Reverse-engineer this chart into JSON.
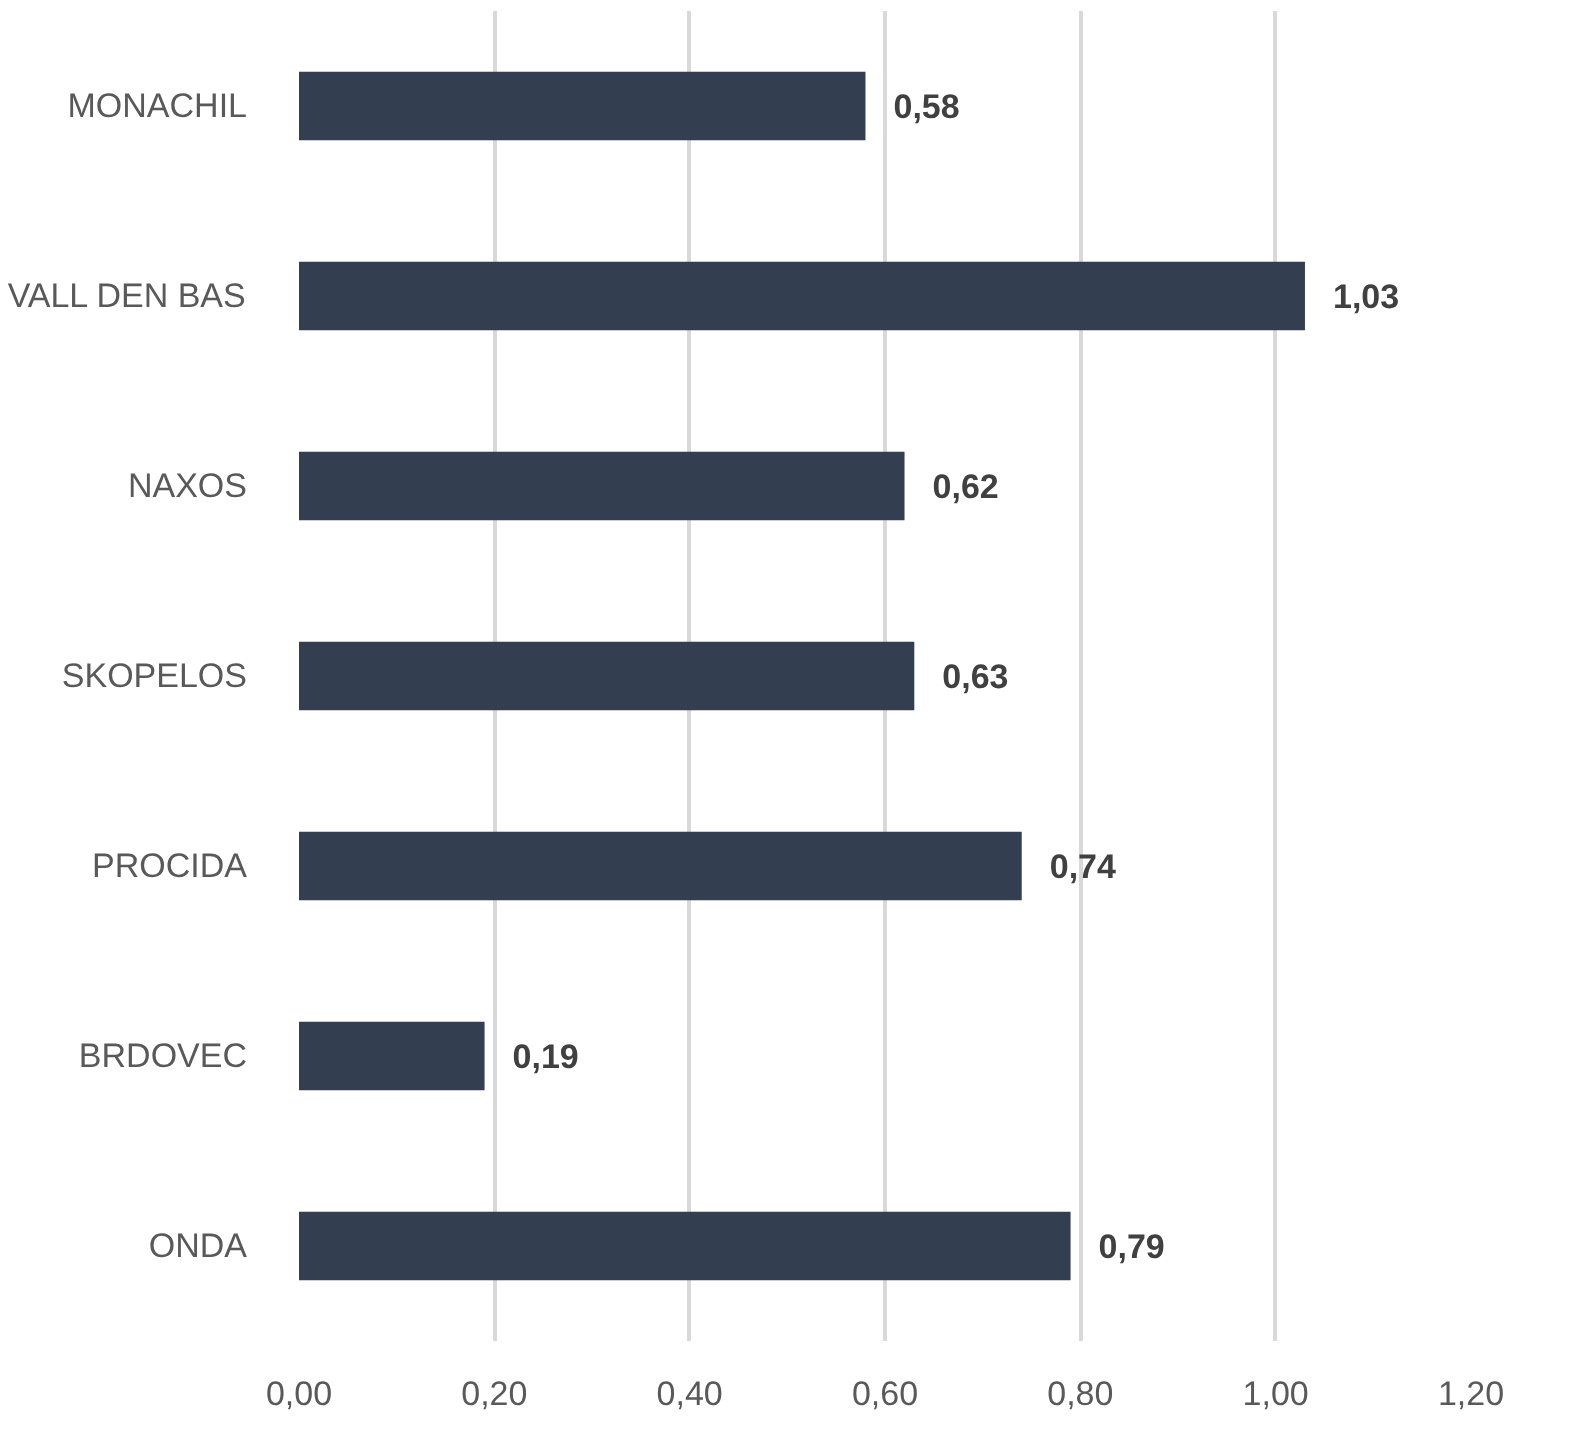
{
  "chart_data": {
    "type": "bar",
    "orientation": "horizontal",
    "categories": [
      "MONACHIL",
      "VALL DEN BAS",
      "NAXOS",
      "SKOPELOS",
      "PROCIDA",
      "BRDOVEC",
      "ONDA"
    ],
    "values": [
      0.58,
      1.03,
      0.62,
      0.63,
      0.74,
      0.19,
      0.79
    ],
    "value_labels": [
      "0,58",
      "1,03",
      "0,62",
      "0,63",
      "0,74",
      "0,19",
      "0,79"
    ],
    "color": "#333f50",
    "xlim": [
      0,
      1.2
    ],
    "xticks": [
      {
        "value": 0,
        "label": "0,00"
      },
      {
        "value": 0.2,
        "label": "0,20"
      },
      {
        "value": 0.4,
        "label": "0,40"
      },
      {
        "value": 0.6,
        "label": "0,60"
      },
      {
        "value": 0.8,
        "label": "0,80"
      },
      {
        "value": 1.0,
        "label": "1,00"
      },
      {
        "value": 1.2,
        "label": "1,20"
      }
    ],
    "grid": "x"
  }
}
